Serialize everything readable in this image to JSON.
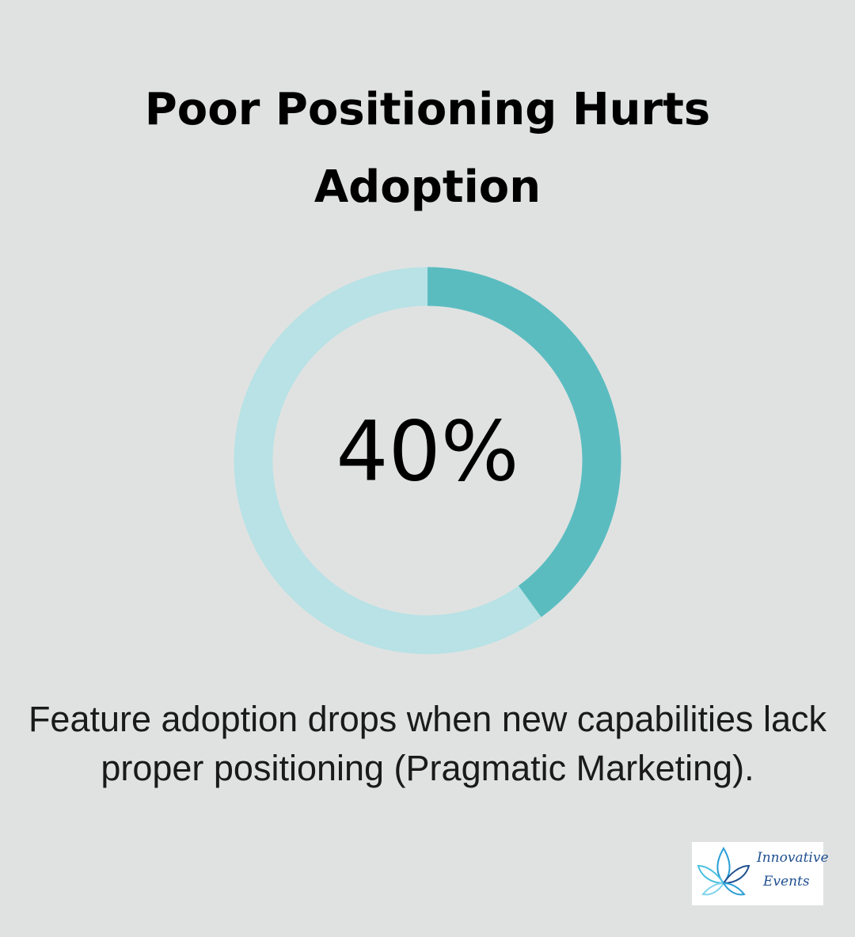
{
  "chart_data": {
    "type": "donut",
    "title": "Poor Positioning Hurts Adoption",
    "values": [
      40
    ],
    "value_labels": [
      "40%"
    ],
    "color": "#5bbcc0",
    "track_color": "#b8e2e5",
    "caption": "Feature adoption drops when new capabilities lack proper positioning (Pragmatic Marketing)."
  },
  "logo": {
    "line1": "Innovative",
    "line2": "Events"
  }
}
